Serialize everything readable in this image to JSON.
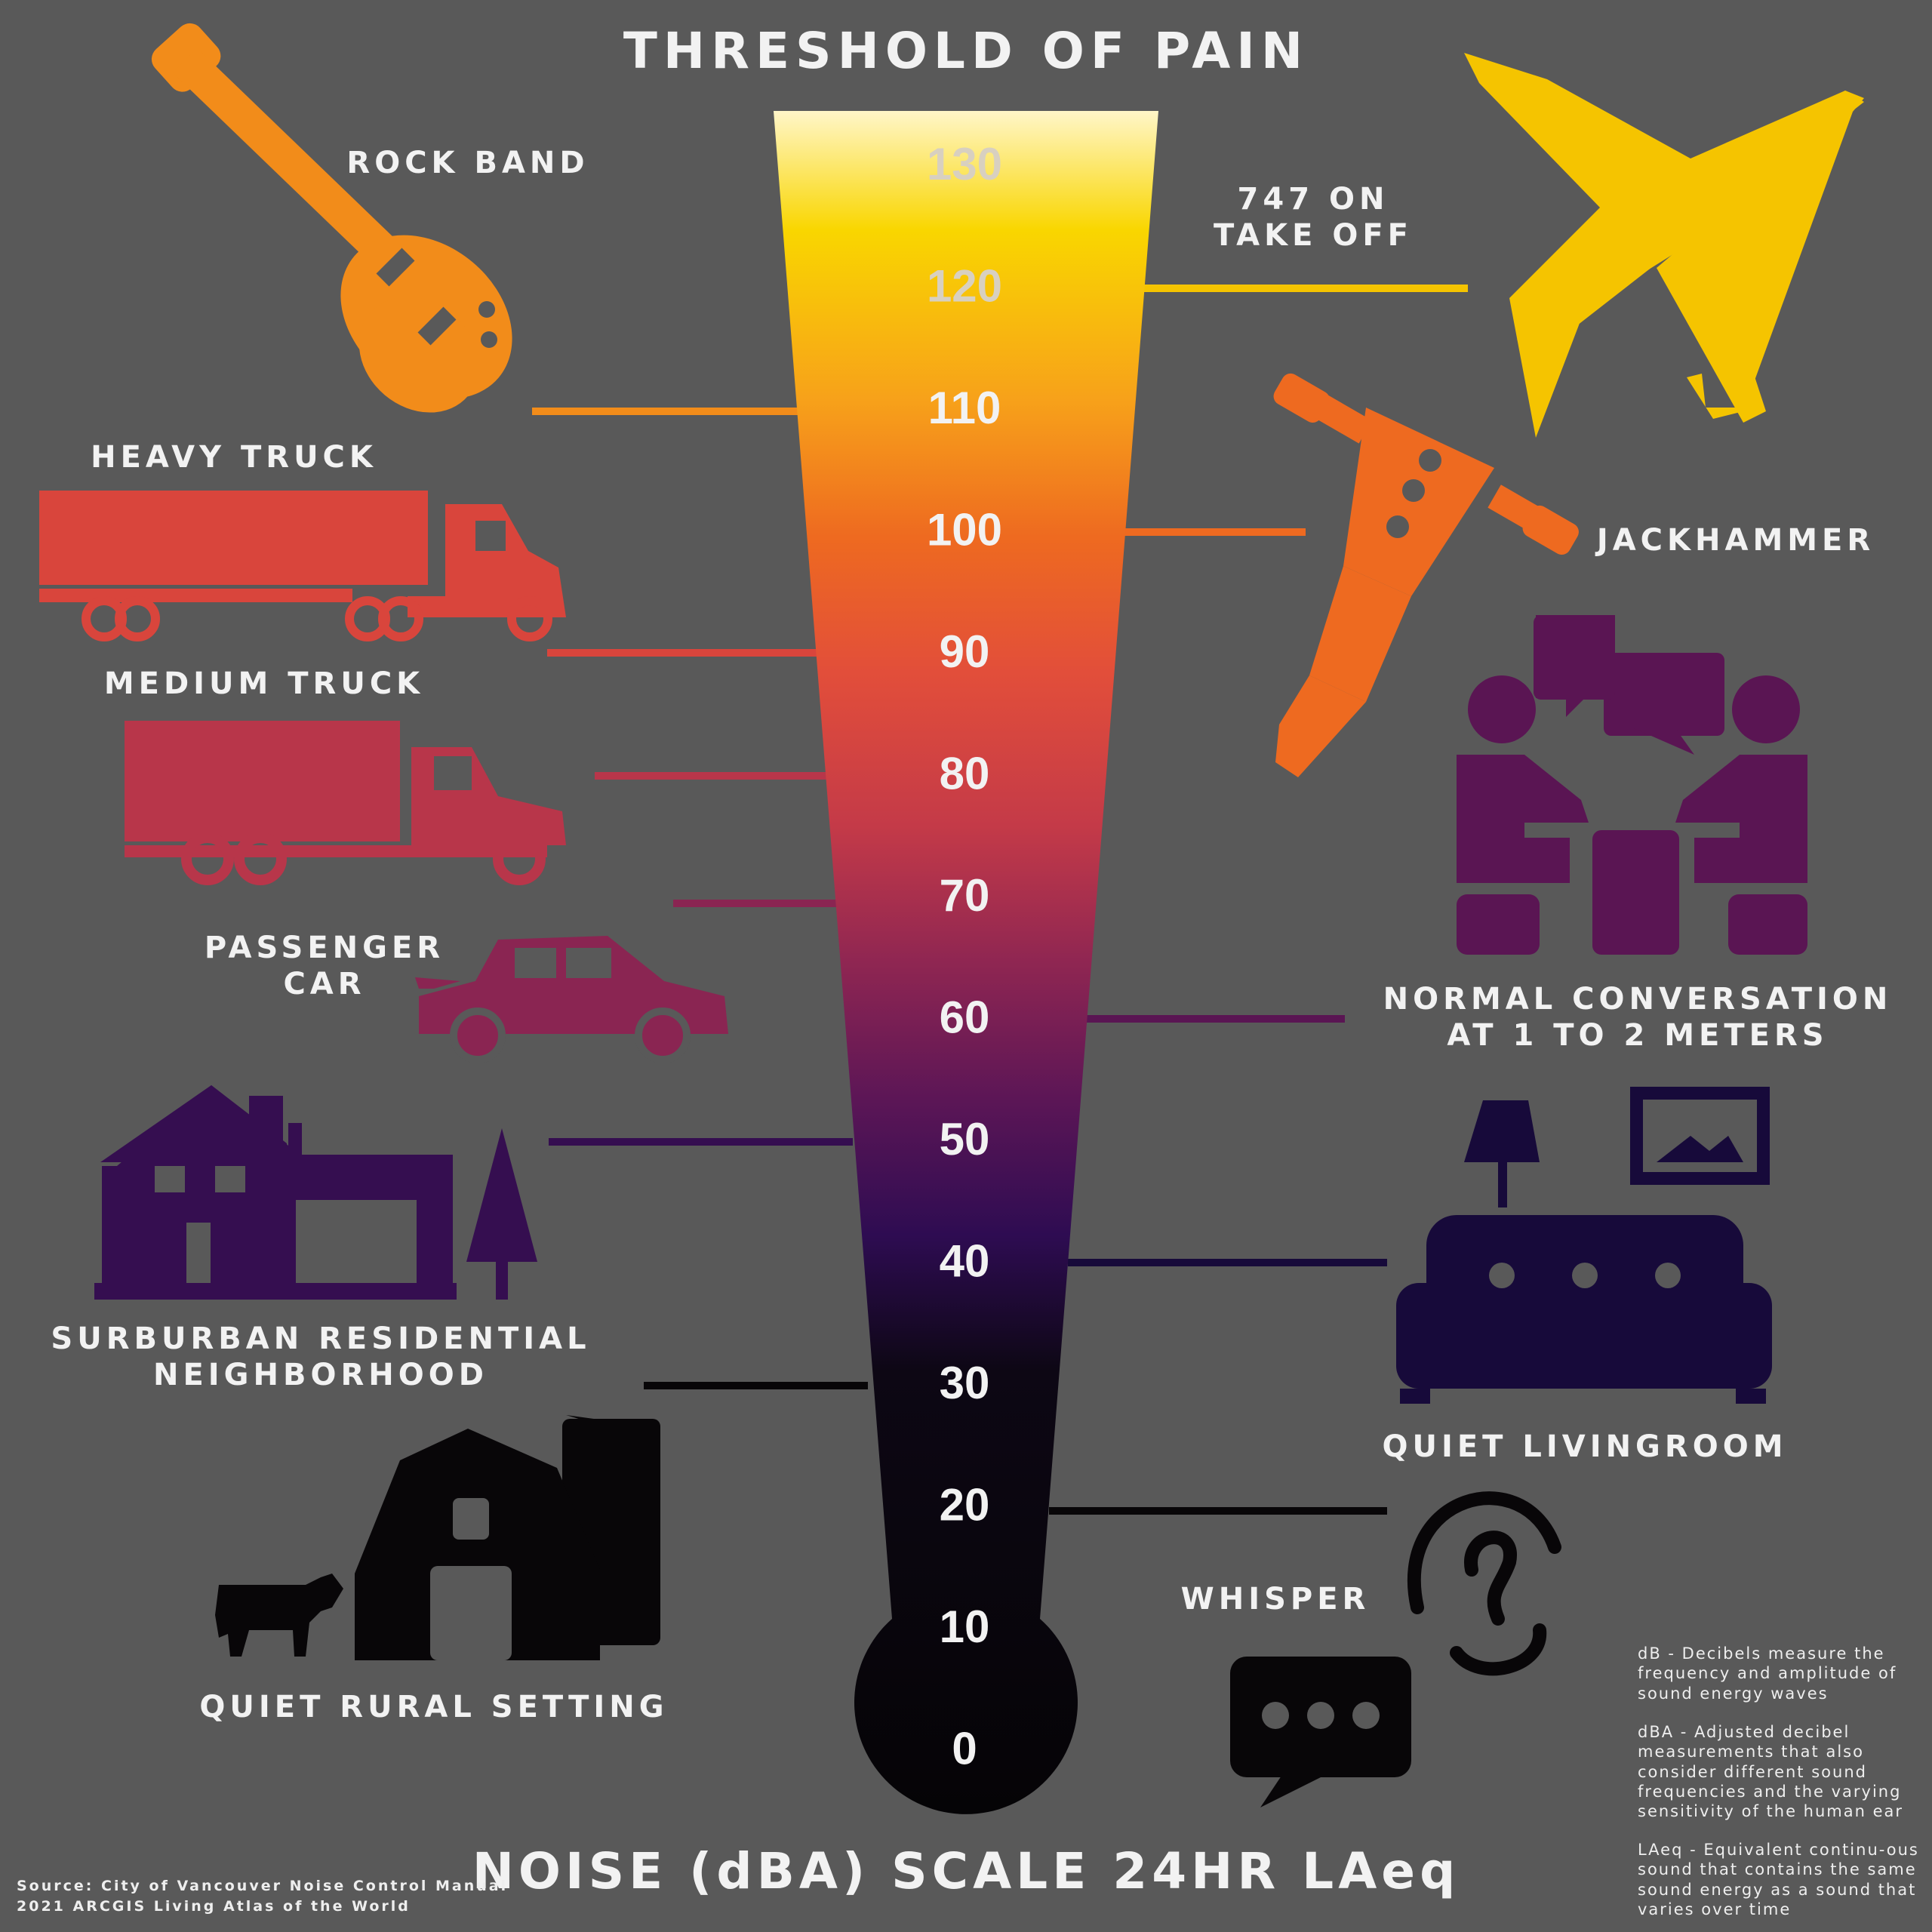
{
  "title": "THRESHOLD OF PAIN",
  "footer_title": "NOISE (dBA) SCALE 24HR LAeq",
  "scale_ticks": [
    "130",
    "120",
    "110",
    "100",
    "90",
    "80",
    "70",
    "60",
    "50",
    "40",
    "30",
    "20",
    "10",
    "0"
  ],
  "sources": [
    {
      "label": "ROCK BAND",
      "dba": 110,
      "side": "left",
      "color": "#f28c1a",
      "icon": "guitar-icon"
    },
    {
      "label": "747 ON\nTAKE OFF",
      "dba": 120,
      "side": "right",
      "color": "#f5c400",
      "icon": "airplane-icon"
    },
    {
      "label": "HEAVY TRUCK",
      "dba": 90,
      "side": "left",
      "color": "#d9453c",
      "icon": "semi-truck-icon"
    },
    {
      "label": "JACKHAMMER",
      "dba": 100,
      "side": "right",
      "color": "#ee6a20",
      "icon": "jackhammer-icon"
    },
    {
      "label": "MEDIUM TRUCK",
      "dba": 80,
      "side": "left",
      "color": "#b8364a",
      "icon": "box-truck-icon"
    },
    {
      "label": "PASSENGER\nCAR",
      "dba": 70,
      "side": "left",
      "color": "#8a2552",
      "icon": "car-icon"
    },
    {
      "label": "NORMAL CONVERSATION\nAT 1 TO 2 METERS",
      "dba": 60,
      "side": "right",
      "color": "#5a1553",
      "icon": "conversation-icon"
    },
    {
      "label": "SURBURBAN RESIDENTIAL\nNEIGHBORHOOD",
      "dba": 50,
      "side": "left",
      "color": "#350e50",
      "icon": "house-icon"
    },
    {
      "label": "QUIET LIVINGROOM",
      "dba": 40,
      "side": "right",
      "color": "#170a3a",
      "icon": "sofa-icon"
    },
    {
      "label": "QUIET RURAL SETTING",
      "dba": 30,
      "side": "left",
      "color": "#080608",
      "icon": "barn-icon"
    },
    {
      "label": "WHISPER",
      "dba": 20,
      "side": "right",
      "color": "#080608",
      "icon": "ear-icon"
    }
  ],
  "source_note": {
    "line1": "Source: City of Vancouver Noise Control Manual",
    "line2": "2021 ARCGIS Living Atlas of the World"
  },
  "definitions": [
    "dB - Decibels measure the frequency and amplitude of sound energy waves",
    "dBA - Adjusted decibel measurements that also consider different sound frequencies and the varying sensitivity of the human ear",
    "LAeq - Equivalent continu-ous sound that contains the same sound energy as a sound that varies over time"
  ],
  "colors": {
    "background": "#595959",
    "gradient": [
      "#fff6c8",
      "#f9d600",
      "#f7a11a",
      "#ee6a20",
      "#e24e3a",
      "#c43a48",
      "#8f2652",
      "#5c1656",
      "#2e0c52",
      "#0d0714",
      "#050406"
    ]
  }
}
